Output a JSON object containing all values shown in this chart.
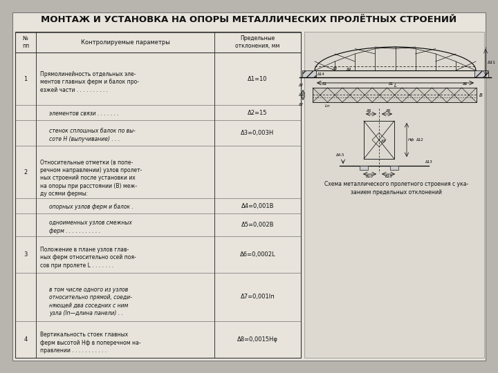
{
  "title": "МОНТАЖ И УСТАНОВКА НА ОПОРЫ МЕТАЛЛИЧЕСКИХ ПРОЛЁТНЫХ СТРОЕНИЙ",
  "bg_color": "#b8b4ae",
  "paper_color": "#e8e4dc",
  "draw_bg_color": "#ddd9d0",
  "title_fontsize": 9.5,
  "caption": "Схема металлического пролетного строения с ука-\nзанием предельных отклонений",
  "rows": [
    {
      "num": "1",
      "param": "Прямолинейность отдельных эле-\nментов главных ферм и балок про-\nезжей части . . . . . . . . . .",
      "value": "Δ1=10",
      "indent": false
    },
    {
      "num": "",
      "param": "элементов связи . . . . . . .",
      "value": "Δ2=15",
      "indent": true
    },
    {
      "num": "",
      "param": "стенок сплошных балок по вы-\nсоте H (выпучивание) . . .",
      "value": "Δ3=0,003H",
      "indent": true
    },
    {
      "num": "2",
      "param": "Относительные отметки (в попе-\nречном направлении) узлов пролет-\nных строений после установки их\nна опоры при расстоянии (В) меж-\nду осями фермы:",
      "value": "",
      "indent": false
    },
    {
      "num": "",
      "param": "опорных узлов ферм и балок .",
      "value": "Δ4=0,001B",
      "indent": true
    },
    {
      "num": "",
      "param": "одноименных узлов смежных\nферм . . . . . . . . . . .",
      "value": "Δ5=0,002B",
      "indent": true
    },
    {
      "num": "3",
      "param": "Положение в плане узлов глав-\nных ферм относительно осей поя-\nсов при пролете L . . . . . . .",
      "value": "Δ6=0,0002L",
      "indent": false
    },
    {
      "num": "",
      "param": "в том числе одного из узлов\nотносительно прямой, соеди-\nняющей два соседних с ним\nузла (lп—длина панели) . .",
      "value": "Δ7=0,001lп",
      "indent": true
    },
    {
      "num": "4",
      "param": "Вертикальность стоек главных\nферм высотой Нф в поперечном на-\nправлении . . . . . . . . . . .",
      "value": "Δ8=0,0015Hφ",
      "indent": false
    }
  ]
}
